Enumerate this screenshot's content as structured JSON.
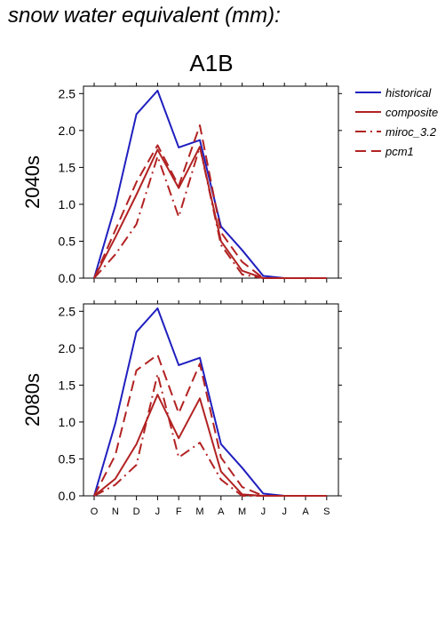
{
  "page_title": "snow water equivalent (mm):",
  "scenario_title": "A1B",
  "colors": {
    "historical": "#1f1fbf",
    "projection": "#b22222"
  },
  "chart_data": [
    {
      "type": "line",
      "ylabel": "2040s",
      "ylim": [
        0,
        2.6
      ],
      "yticks": [
        "0.0",
        "0.5",
        "1.0",
        "1.5",
        "2.0",
        "2.5"
      ],
      "x": [
        "O",
        "N",
        "D",
        "J",
        "F",
        "M",
        "A",
        "M",
        "J",
        "J",
        "A",
        "S"
      ],
      "series": [
        {
          "name": "historical",
          "style": "solid",
          "color": "#1f1fbf",
          "values": [
            0.0,
            0.98,
            2.22,
            2.54,
            1.77,
            1.87,
            0.7,
            0.38,
            0.03,
            0.0,
            0.0,
            0.0
          ]
        },
        {
          "name": "composite",
          "style": "solid",
          "color": "#b22222",
          "values": [
            0.0,
            0.55,
            1.13,
            1.74,
            1.22,
            1.78,
            0.5,
            0.1,
            0.0,
            0.0,
            0.0,
            0.0
          ]
        },
        {
          "name": "miroc_3.2",
          "style": "dashdot",
          "color": "#b22222",
          "values": [
            0.0,
            0.32,
            0.73,
            1.65,
            0.83,
            1.78,
            0.45,
            0.05,
            0.0,
            0.0,
            0.0,
            0.0
          ]
        },
        {
          "name": "pcm1",
          "style": "dash",
          "color": "#b22222",
          "values": [
            0.0,
            0.65,
            1.3,
            1.8,
            1.25,
            2.07,
            0.62,
            0.22,
            0.0,
            0.0,
            0.0,
            0.0
          ]
        }
      ]
    },
    {
      "type": "line",
      "ylabel": "2080s",
      "ylim": [
        0,
        2.6
      ],
      "yticks": [
        "0.0",
        "0.5",
        "1.0",
        "1.5",
        "2.0",
        "2.5"
      ],
      "x": [
        "O",
        "N",
        "D",
        "J",
        "F",
        "M",
        "A",
        "M",
        "J",
        "J",
        "A",
        "S"
      ],
      "series": [
        {
          "name": "historical",
          "style": "solid",
          "color": "#1f1fbf",
          "values": [
            0.0,
            0.98,
            2.22,
            2.54,
            1.77,
            1.87,
            0.7,
            0.38,
            0.03,
            0.0,
            0.0,
            0.0
          ]
        },
        {
          "name": "composite",
          "style": "solid",
          "color": "#b22222",
          "values": [
            0.0,
            0.23,
            0.7,
            1.37,
            0.78,
            1.32,
            0.33,
            0.02,
            0.0,
            0.0,
            0.0,
            0.0
          ]
        },
        {
          "name": "miroc_3.2",
          "style": "dashdot",
          "color": "#b22222",
          "values": [
            0.0,
            0.15,
            0.42,
            1.65,
            0.52,
            0.72,
            0.22,
            0.0,
            0.0,
            0.0,
            0.0,
            0.0
          ]
        },
        {
          "name": "pcm1",
          "style": "dash",
          "color": "#b22222",
          "values": [
            0.0,
            0.55,
            1.7,
            1.91,
            1.12,
            1.79,
            0.52,
            0.12,
            0.0,
            0.0,
            0.0,
            0.0
          ]
        }
      ]
    }
  ],
  "legend": {
    "placement": "right",
    "entries": [
      {
        "label": "historical",
        "style": "solid",
        "color": "#1f1fbf"
      },
      {
        "label": "composite",
        "style": "solid",
        "color": "#b22222"
      },
      {
        "label": "miroc_3.2",
        "style": "dashdot",
        "color": "#b22222"
      },
      {
        "label": "pcm1",
        "style": "dash",
        "color": "#b22222"
      }
    ]
  }
}
